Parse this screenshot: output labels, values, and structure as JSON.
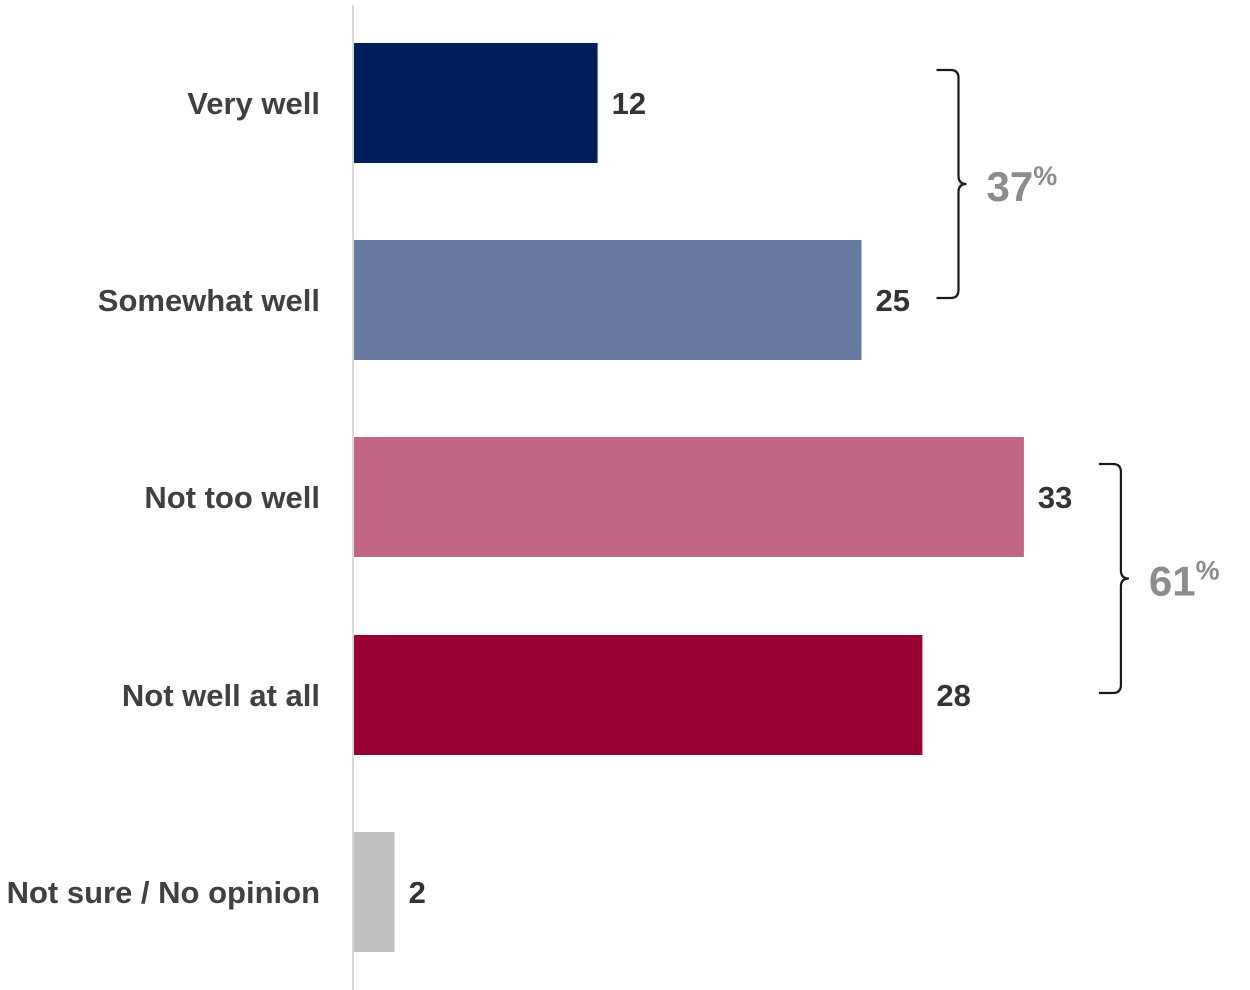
{
  "chart_data": {
    "type": "bar",
    "orientation": "horizontal",
    "categories": [
      "Very well",
      "Somewhat well",
      "Not too well",
      "Not well at all",
      "Not sure / No opinion"
    ],
    "values": [
      12,
      25,
      33,
      28,
      2
    ],
    "value_labels": [
      "12",
      "25",
      "33",
      "28",
      "2"
    ],
    "colors": [
      "#00205b",
      "#67799f",
      "#c16683",
      "#990033",
      "#c0c0c0"
    ],
    "xlim": [
      0,
      35
    ],
    "grid": false,
    "legend": "none",
    "groups": [
      {
        "label_value": "37",
        "label_unit": "%",
        "members": [
          0,
          1
        ]
      },
      {
        "label_value": "61",
        "label_unit": "%",
        "members": [
          2,
          3
        ]
      }
    ]
  }
}
